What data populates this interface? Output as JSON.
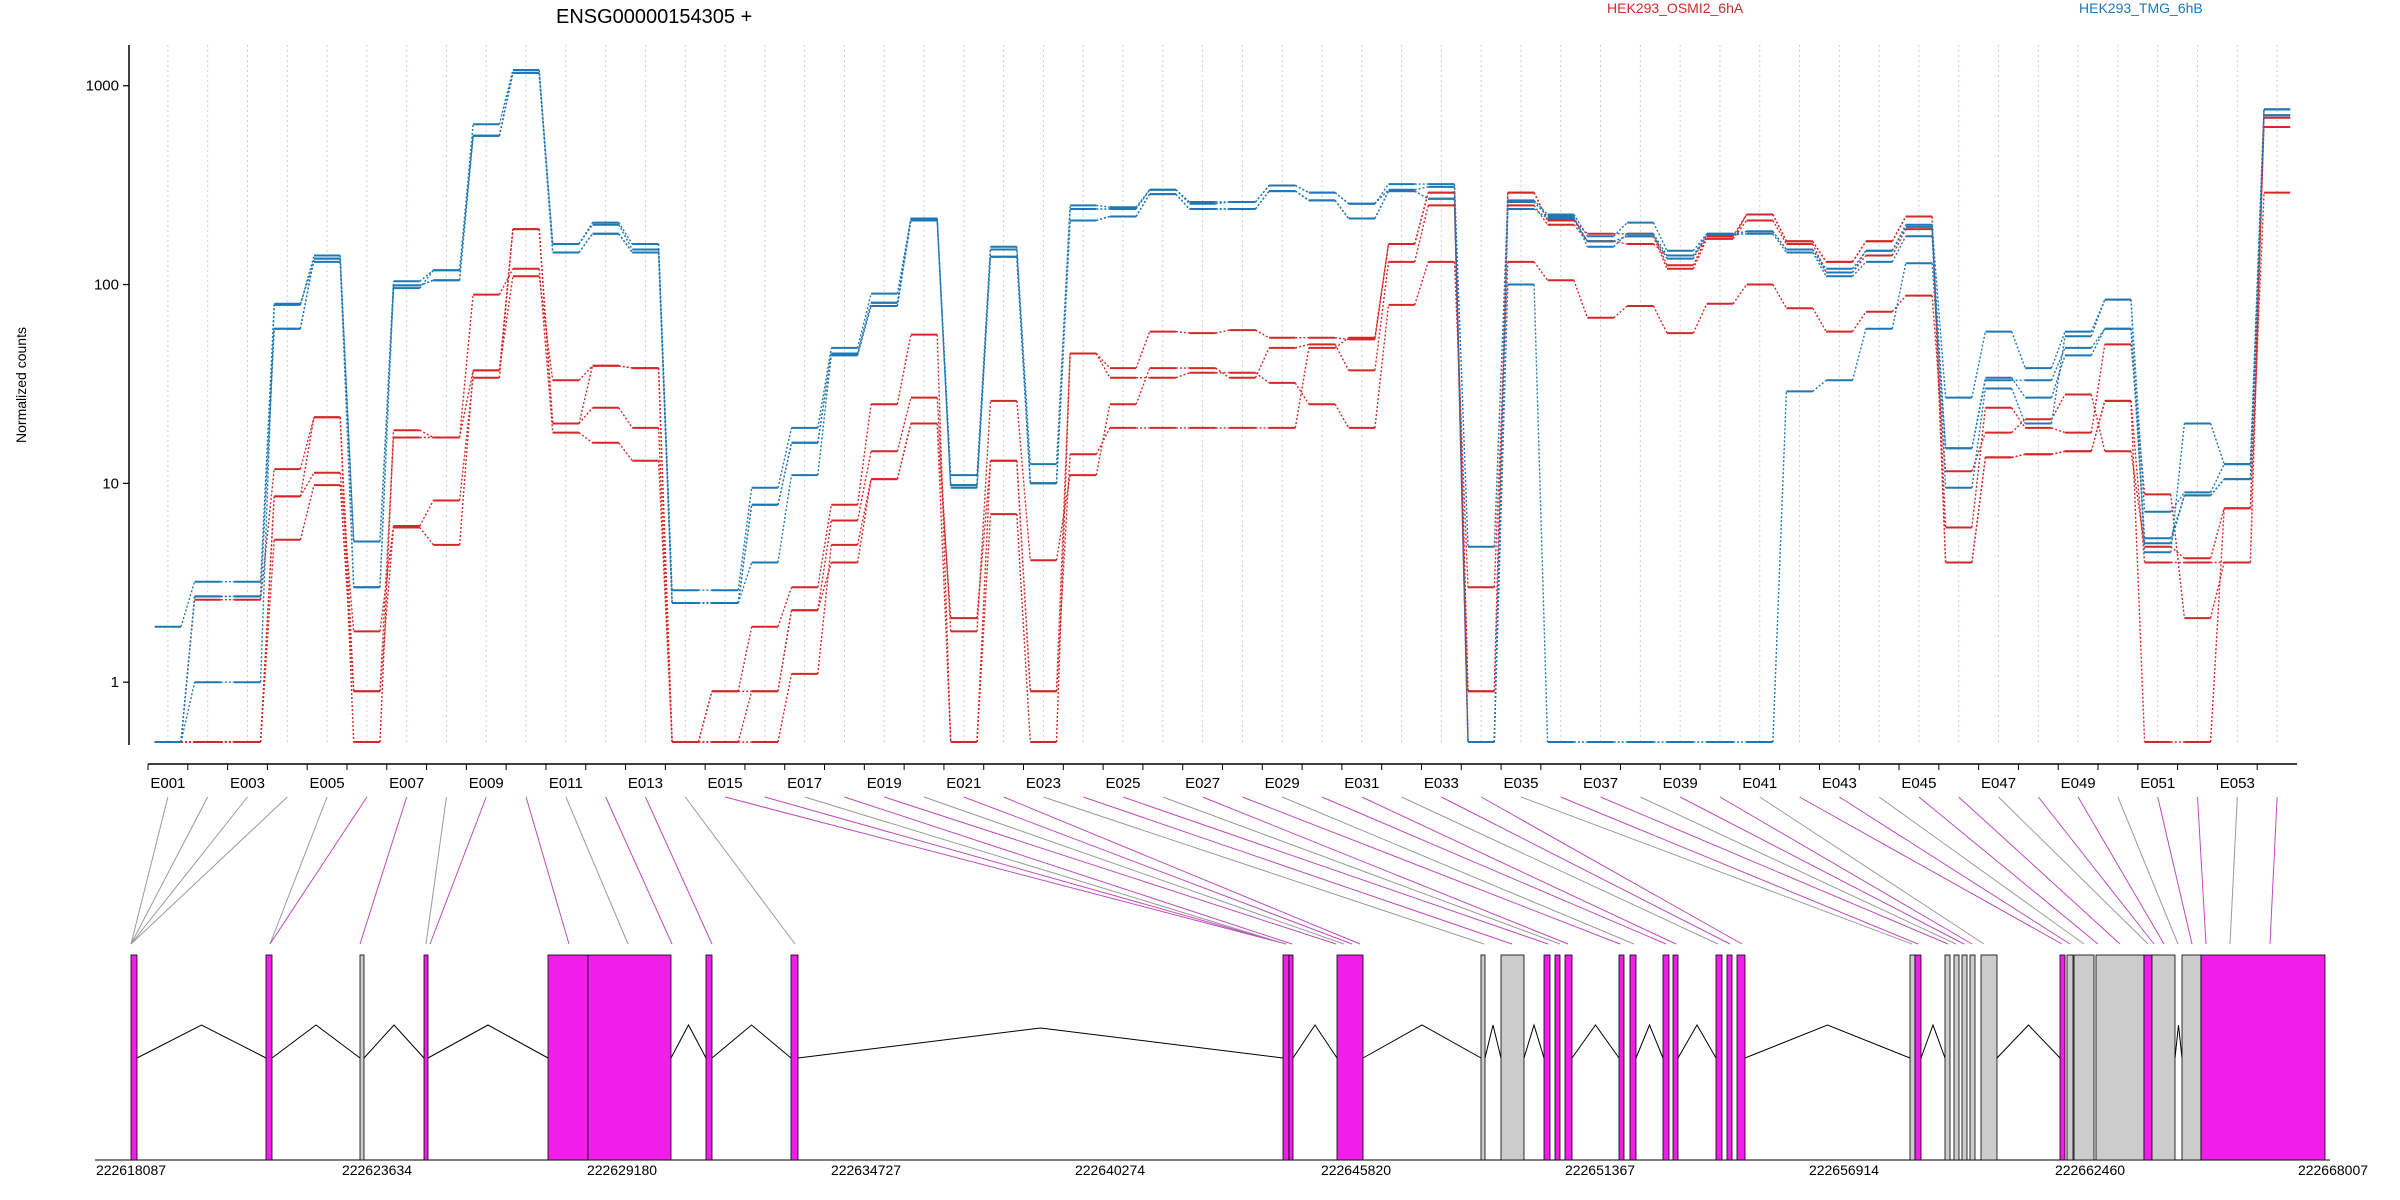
{
  "header": {
    "gene_title": "ENSG00000154305 +",
    "legend": [
      {
        "label": "HEK293_OSMI2_6hA",
        "color": "#d62728"
      },
      {
        "label": "HEK293_TMG_6hB",
        "color": "#1f77b4"
      }
    ]
  },
  "chart_data": {
    "type": "line",
    "title": "ENSG00000154305 +",
    "xlabel": "",
    "ylabel": "Normalized counts",
    "yscale": "log",
    "ylim": [
      0.5,
      1500
    ],
    "yticks": [
      1,
      10,
      100,
      1000
    ],
    "ytick_labels": [
      "1",
      "10",
      "100",
      "1000"
    ],
    "grid": "vertical dotted lines at each exon",
    "legend_position": "top",
    "categories": [
      "E001",
      "E002",
      "E003",
      "E004",
      "E005",
      "E006",
      "E007",
      "E008",
      "E009",
      "E010",
      "E011",
      "E012",
      "E013",
      "E014",
      "E015",
      "E016",
      "E017",
      "E018",
      "E019",
      "E020",
      "E021",
      "E022",
      "E023",
      "E024",
      "E025",
      "E026",
      "E027",
      "E028",
      "E029",
      "E030",
      "E031",
      "E032",
      "E033",
      "E034",
      "E035",
      "E036",
      "E037",
      "E038",
      "E039",
      "E040",
      "E041",
      "E042",
      "E043",
      "E044",
      "E045",
      "E046",
      "E047",
      "E048",
      "E049",
      "E050",
      "E051",
      "E052",
      "E053",
      "E054"
    ],
    "category_labels_shown": [
      "E001",
      "E003",
      "E005",
      "E007",
      "E009",
      "E011",
      "E013",
      "E015",
      "E017",
      "E019",
      "E021",
      "E023",
      "E025",
      "E027",
      "E029",
      "E031",
      "E033",
      "E035",
      "E037",
      "E039",
      "E041",
      "E043",
      "E045",
      "E047",
      "E049",
      "E051",
      "E053"
    ],
    "series": [
      {
        "name": "HEK293_OSMI2_6hA",
        "color": "#d62728",
        "values": [
          0.5,
          0.5,
          0.5,
          5.2,
          9.8,
          0.9,
          6.0,
          4.9,
          37,
          110,
          33,
          39,
          38,
          0.5,
          0.5,
          0.5,
          1.1,
          4.9,
          10.5,
          20,
          0.5,
          13,
          0.9,
          45,
          38,
          58,
          57,
          59,
          54,
          54,
          53,
          160,
          290,
          0.5,
          290,
          210,
          180,
          180,
          125,
          175,
          225,
          165,
          130,
          165,
          220,
          4.0,
          13.5,
          14,
          14.5,
          26,
          0.5,
          0.5,
          7.5,
          290
        ]
      },
      {
        "name": "HEK293_OSMI2_6hA",
        "color": "#d62728",
        "values": [
          0.5,
          0.5,
          0.5,
          8.6,
          11.3,
          1.8,
          6.1,
          8.2,
          34,
          190,
          20,
          24,
          19,
          0.5,
          0.5,
          0.9,
          2.3,
          6.5,
          14.5,
          27,
          1.8,
          26,
          4.1,
          11,
          25,
          38,
          38,
          34,
          48,
          50,
          37,
          130,
          250,
          0.9,
          250,
          200,
          165,
          160,
          140,
          170,
          210,
          160,
          115,
          140,
          190,
          6.0,
          24,
          19,
          18,
          50,
          8.8,
          2.1,
          4.0,
          690
        ]
      },
      {
        "name": "HEK293_OSMI2_6hA",
        "color": "#d62728",
        "values": [
          0.5,
          2.6,
          2.6,
          11.8,
          21.5,
          0.5,
          18.5,
          17,
          89,
          120,
          18,
          16,
          13,
          0.5,
          0.9,
          1.9,
          3.0,
          7.8,
          25,
          56,
          0.5,
          7.0,
          0.5,
          45,
          34,
          34,
          36,
          36,
          32,
          25,
          19,
          79,
          130,
          3.0,
          130,
          105,
          68,
          78,
          57,
          80,
          100,
          76,
          58,
          73,
          88,
          11.5,
          18,
          21,
          28,
          14.5,
          4.8,
          4.2,
          7.5,
          620
        ]
      },
      {
        "name": "HEK293_OSMI2_6hA",
        "color": "#d62728",
        "values": [
          0.5,
          0.5,
          0.5,
          8.6,
          21.5,
          0.9,
          17,
          17,
          37,
          190,
          20,
          39,
          38,
          0.5,
          0.9,
          0.9,
          2.3,
          4.0,
          10.5,
          20,
          2.1,
          13,
          0.9,
          14,
          19,
          19,
          19,
          19,
          19,
          48,
          54,
          160,
          290,
          0.9,
          290,
          210,
          165,
          175,
          120,
          170,
          225,
          165,
          130,
          165,
          220,
          4.0,
          13.5,
          14,
          14.5,
          26,
          4.0,
          4.0,
          4.0,
          760
        ]
      },
      {
        "name": "HEK293_TMG_6hB",
        "color": "#1f77b4",
        "values": [
          1.9,
          3.2,
          3.2,
          79,
          140,
          5.1,
          104,
          118,
          640,
          1200,
          160,
          205,
          160,
          2.9,
          2.9,
          9.5,
          19,
          48,
          90,
          215,
          11,
          155,
          12.5,
          250,
          245,
          300,
          255,
          260,
          315,
          290,
          255,
          320,
          320,
          4.8,
          265,
          225,
          175,
          205,
          148,
          180,
          185,
          150,
          120,
          148,
          200,
          27,
          58,
          38,
          58,
          84,
          7.2,
          9.0,
          12.5,
          760
        ]
      },
      {
        "name": "HEK293_TMG_6hB",
        "color": "#1f77b4",
        "values": [
          0.5,
          2.7,
          2.7,
          60,
          135,
          3.0,
          99,
          105,
          560,
          1160,
          145,
          180,
          145,
          2.5,
          2.5,
          7.8,
          16,
          45,
          81,
          215,
          9.8,
          138,
          10,
          210,
          220,
          285,
          240,
          240,
          295,
          265,
          215,
          295,
          270,
          0.5,
          240,
          215,
          165,
          175,
          135,
          178,
          180,
          145,
          110,
          130,
          175,
          15,
          33,
          33,
          48,
          60,
          5.3,
          8.7,
          10.5,
          710
        ]
      },
      {
        "name": "HEK293_TMG_6hB",
        "color": "#1f77b4",
        "values": [
          0.5,
          2.7,
          2.7,
          60,
          135,
          3.0,
          99,
          105,
          560,
          1160,
          145,
          180,
          145,
          2.5,
          2.5,
          7.8,
          16,
          45,
          81,
          215,
          9.8,
          138,
          10,
          210,
          220,
          285,
          240,
          240,
          295,
          265,
          215,
          295,
          270,
          0.5,
          100,
          0.5,
          0.5,
          0.5,
          0.5,
          0.5,
          0.5,
          29,
          33,
          60,
          128,
          15,
          34,
          27,
          44,
          60,
          5.0,
          8.7,
          10.5,
          710
        ]
      },
      {
        "name": "HEK293_TMG_6hB",
        "color": "#1f77b4",
        "values": [
          0.5,
          1.0,
          1.0,
          80,
          130,
          5.1,
          96,
          118,
          560,
          1160,
          160,
          200,
          150,
          2.5,
          2.5,
          4.0,
          11,
          44,
          78,
          210,
          9.5,
          150,
          10,
          240,
          240,
          300,
          260,
          260,
          315,
          290,
          255,
          300,
          310,
          0.5,
          260,
          220,
          155,
          180,
          140,
          180,
          185,
          150,
          115,
          148,
          195,
          9.5,
          30,
          20,
          55,
          84,
          4.5,
          20,
          12.5,
          760
        ]
      }
    ],
    "gene_model": {
      "coordinate_labels": [
        "222618087",
        "222623634",
        "222629180",
        "222634727",
        "222640274",
        "222645820",
        "222651367",
        "222656914",
        "222662460",
        "222668007"
      ],
      "exon_colors": {
        "tested": "#f01ee8",
        "not_tested": "#cccccc"
      }
    }
  }
}
